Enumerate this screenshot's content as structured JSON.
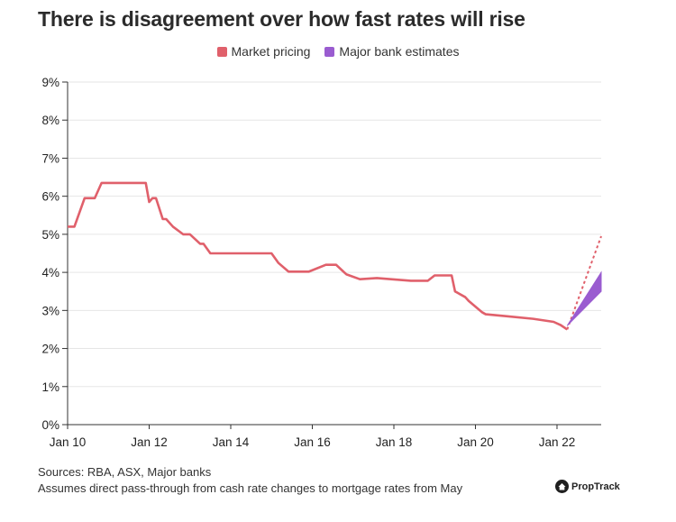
{
  "title": "There is disagreement over how fast rates will rise",
  "legend": [
    {
      "label": "Market pricing",
      "color": "#e0606b"
    },
    {
      "label": "Major bank estimates",
      "color": "#9a5cd0"
    }
  ],
  "footer": {
    "sources": "Sources: RBA, ASX, Major banks",
    "note": "Assumes direct pass-through from cash rate changes to mortgage rates from May"
  },
  "brand": {
    "name": "PropTrack",
    "icon": "house-icon"
  },
  "chart_data": {
    "type": "line",
    "title": "There is disagreement over how fast rates will rise",
    "xlabel": "",
    "ylabel": "",
    "ylim": [
      0,
      9
    ],
    "xlim": [
      "2010-01",
      "2023-02"
    ],
    "x_ticks": [
      "Jan 10",
      "Jan 12",
      "Jan 14",
      "Jan 16",
      "Jan 18",
      "Jan 20",
      "Jan 22"
    ],
    "y_ticks": [
      "0%",
      "1%",
      "2%",
      "3%",
      "4%",
      "5%",
      "6%",
      "7%",
      "8%",
      "9%"
    ],
    "grid": true,
    "legend_position": "top-center",
    "series": [
      {
        "name": "Market pricing",
        "color": "#e0606b",
        "x": [
          "2010-01",
          "2010-03",
          "2010-06",
          "2010-09",
          "2010-11",
          "2011-01",
          "2011-06",
          "2011-12",
          "2012-01",
          "2012-02",
          "2012-03",
          "2012-05",
          "2012-06",
          "2012-08",
          "2012-11",
          "2013-01",
          "2013-04",
          "2013-05",
          "2013-07",
          "2013-08",
          "2014-06",
          "2015-01",
          "2015-03",
          "2015-06",
          "2015-12",
          "2016-05",
          "2016-08",
          "2016-11",
          "2017-03",
          "2017-08",
          "2018-06",
          "2018-11",
          "2019-01",
          "2019-06",
          "2019-07",
          "2019-10",
          "2019-11",
          "2020-03",
          "2020-04",
          "2020-10",
          "2021-06",
          "2021-12",
          "2022-02",
          "2022-04"
        ],
        "values": [
          5.2,
          5.2,
          5.95,
          5.95,
          6.35,
          6.35,
          6.35,
          6.35,
          5.85,
          5.95,
          5.95,
          5.4,
          5.4,
          5.2,
          5.0,
          5.0,
          4.75,
          4.75,
          4.5,
          4.5,
          4.5,
          4.5,
          4.25,
          4.02,
          4.02,
          4.2,
          4.2,
          3.95,
          3.82,
          3.85,
          3.78,
          3.78,
          3.92,
          3.92,
          3.5,
          3.35,
          3.25,
          2.95,
          2.9,
          2.85,
          2.78,
          2.7,
          2.62,
          2.5
        ]
      },
      {
        "name": "Market pricing",
        "style": "dashed",
        "color": "#e0606b",
        "x": [
          "2022-04",
          "2023-02"
        ],
        "values": [
          2.5,
          4.95
        ]
      },
      {
        "name": "Major bank estimates",
        "type": "area",
        "color": "#9a5cd0",
        "x": [
          "2022-04",
          "2023-02"
        ],
        "lower": [
          2.6,
          3.5
        ],
        "upper": [
          2.6,
          4.0
        ]
      }
    ]
  }
}
